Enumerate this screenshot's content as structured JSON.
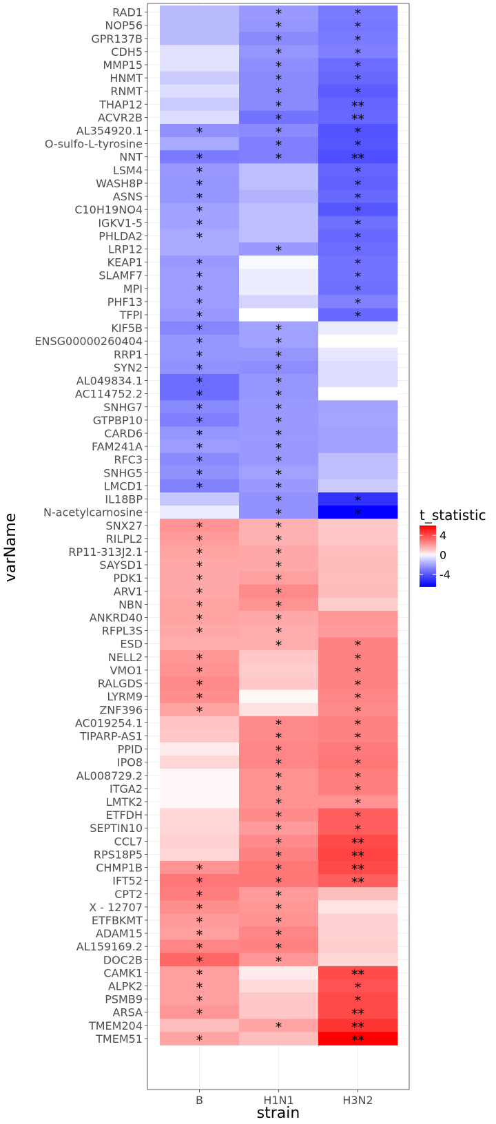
{
  "chart_data": {
    "type": "heatmap",
    "xlabel": "strain",
    "ylabel": "varName",
    "x_categories": [
      "B",
      "H1N1",
      "H3N2"
    ],
    "legend": {
      "title": "t_statistic",
      "ticks": [
        4,
        0,
        -4
      ],
      "range": [
        -6.5,
        6
      ],
      "low_color": "#0000ff",
      "mid_color": "#ffffff",
      "high_color": "#ff0000",
      "placement": "right"
    },
    "rows": [
      {
        "name": "RAD1",
        "values": [
          -1.4,
          -2.2,
          -3.0
        ],
        "sig": [
          "",
          "*",
          "*"
        ]
      },
      {
        "name": "NOP56",
        "values": [
          -1.4,
          -2.3,
          -3.1
        ],
        "sig": [
          "",
          "*",
          "*"
        ]
      },
      {
        "name": "GPR137B",
        "values": [
          -1.4,
          -2.6,
          -3.0
        ],
        "sig": [
          "",
          "*",
          "*"
        ]
      },
      {
        "name": "CDH5",
        "values": [
          -0.5,
          -2.3,
          -2.9
        ],
        "sig": [
          "",
          "*",
          "*"
        ]
      },
      {
        "name": "MMP15",
        "values": [
          -0.5,
          -2.5,
          -3.4
        ],
        "sig": [
          "",
          "*",
          "*"
        ]
      },
      {
        "name": "HNMT",
        "values": [
          -1.0,
          -2.6,
          -3.5
        ],
        "sig": [
          "",
          "*",
          "*"
        ]
      },
      {
        "name": "RNMT",
        "values": [
          -0.6,
          -2.6,
          -3.8
        ],
        "sig": [
          "",
          "*",
          "*"
        ]
      },
      {
        "name": "THAP12",
        "values": [
          -1.0,
          -2.6,
          -3.6
        ],
        "sig": [
          "",
          "*",
          "**"
        ]
      },
      {
        "name": "ACVR2B",
        "values": [
          -0.6,
          -3.2,
          -3.5
        ],
        "sig": [
          "",
          "*",
          "**"
        ]
      },
      {
        "name": "AL354920.1",
        "values": [
          -2.4,
          -2.6,
          -4.1
        ],
        "sig": [
          "*",
          "*",
          "*"
        ]
      },
      {
        "name": "O-sulfo-L-tyrosine",
        "values": [
          -1.8,
          -2.9,
          -4.0
        ],
        "sig": [
          "",
          "*",
          "*"
        ]
      },
      {
        "name": "NNT",
        "values": [
          -3.0,
          -2.9,
          -4.2
        ],
        "sig": [
          "*",
          "*",
          "**"
        ]
      },
      {
        "name": "LSM4",
        "values": [
          -2.2,
          -1.3,
          -3.6
        ],
        "sig": [
          "*",
          "",
          "*"
        ]
      },
      {
        "name": "WASH8P",
        "values": [
          -2.3,
          -1.3,
          -3.7
        ],
        "sig": [
          "*",
          "",
          "*"
        ]
      },
      {
        "name": "ASNS",
        "values": [
          -2.3,
          -1.6,
          -3.5
        ],
        "sig": [
          "*",
          "",
          "*"
        ]
      },
      {
        "name": "C10H19NO4",
        "values": [
          -2.0,
          -1.3,
          -4.0
        ],
        "sig": [
          "*",
          "",
          "*"
        ]
      },
      {
        "name": "IGKV1-5",
        "values": [
          -2.0,
          -1.3,
          -3.3
        ],
        "sig": [
          "*",
          "",
          "*"
        ]
      },
      {
        "name": "PHLDA2",
        "values": [
          -1.8,
          -1.3,
          -3.5
        ],
        "sig": [
          "*",
          "",
          "*"
        ]
      },
      {
        "name": "LRP12",
        "values": [
          -1.8,
          -2.2,
          -3.4
        ],
        "sig": [
          "",
          "*",
          "*"
        ]
      },
      {
        "name": "KEAP1",
        "values": [
          -2.2,
          -0.1,
          -3.2
        ],
        "sig": [
          "*",
          "",
          "*"
        ]
      },
      {
        "name": "SLAMF7",
        "values": [
          -2.1,
          -0.3,
          -3.2
        ],
        "sig": [
          "*",
          "",
          "*"
        ]
      },
      {
        "name": "MPI",
        "values": [
          -2.1,
          -0.3,
          -3.3
        ],
        "sig": [
          "*",
          "",
          "*"
        ]
      },
      {
        "name": "PHF13",
        "values": [
          -2.1,
          -0.8,
          -2.8
        ],
        "sig": [
          "*",
          "",
          "*"
        ]
      },
      {
        "name": "TFPI",
        "values": [
          -2.2,
          0.0,
          -3.5
        ],
        "sig": [
          "*",
          "",
          "*"
        ]
      },
      {
        "name": "KIF5B",
        "values": [
          -2.7,
          -2.0,
          -0.3
        ],
        "sig": [
          "*",
          "*",
          ""
        ]
      },
      {
        "name": "ENSG00000260404",
        "values": [
          -2.3,
          -2.0,
          0.0
        ],
        "sig": [
          "*",
          "*",
          ""
        ]
      },
      {
        "name": "RRP1",
        "values": [
          -2.3,
          -2.3,
          -0.4
        ],
        "sig": [
          "*",
          "*",
          ""
        ]
      },
      {
        "name": "SYN2",
        "values": [
          -2.4,
          -2.5,
          -0.6
        ],
        "sig": [
          "*",
          "*",
          ""
        ]
      },
      {
        "name": "AL049834.1",
        "values": [
          -3.4,
          -2.3,
          -0.6
        ],
        "sig": [
          "*",
          "*",
          ""
        ]
      },
      {
        "name": "AC114752.2",
        "values": [
          -3.4,
          -2.3,
          0.0
        ],
        "sig": [
          "*",
          "*",
          ""
        ]
      },
      {
        "name": "SNHG7",
        "values": [
          -2.6,
          -2.2,
          -2.0
        ],
        "sig": [
          "*",
          "*",
          ""
        ]
      },
      {
        "name": "GTPBP10",
        "values": [
          -2.9,
          -2.2,
          -1.9
        ],
        "sig": [
          "*",
          "*",
          ""
        ]
      },
      {
        "name": "CARD6",
        "values": [
          -2.3,
          -2.2,
          -2.0
        ],
        "sig": [
          "*",
          "*",
          ""
        ]
      },
      {
        "name": "FAM241A",
        "values": [
          -2.1,
          -2.2,
          -2.0
        ],
        "sig": [
          "*",
          "*",
          ""
        ]
      },
      {
        "name": "RFC3",
        "values": [
          -2.6,
          -2.2,
          -1.3
        ],
        "sig": [
          "*",
          "*",
          ""
        ]
      },
      {
        "name": "SNHG5",
        "values": [
          -2.4,
          -2.0,
          -1.3
        ],
        "sig": [
          "*",
          "*",
          ""
        ]
      },
      {
        "name": "LMCD1",
        "values": [
          -2.8,
          -2.2,
          -1.0
        ],
        "sig": [
          "*",
          "*",
          ""
        ]
      },
      {
        "name": "IL18BP",
        "values": [
          -1.1,
          -2.4,
          -5.0
        ],
        "sig": [
          "",
          "*",
          "*"
        ]
      },
      {
        "name": "N-acetylcarnosine",
        "values": [
          -0.3,
          -2.4,
          -6.4
        ],
        "sig": [
          "",
          "*",
          "*"
        ]
      },
      {
        "name": "SNX27",
        "values": [
          2.2,
          1.5,
          1.0
        ],
        "sig": [
          "*",
          "*",
          ""
        ]
      },
      {
        "name": "RILPL2",
        "values": [
          2.0,
          1.5,
          1.0
        ],
        "sig": [
          "*",
          "*",
          ""
        ]
      },
      {
        "name": "RP11-313J2.1",
        "values": [
          1.8,
          1.7,
          1.2
        ],
        "sig": [
          "*",
          "*",
          ""
        ]
      },
      {
        "name": "SAYSD1",
        "values": [
          1.7,
          1.7,
          1.3
        ],
        "sig": [
          "*",
          "*",
          ""
        ]
      },
      {
        "name": "PDK1",
        "values": [
          1.7,
          1.9,
          1.2
        ],
        "sig": [
          "*",
          "*",
          ""
        ]
      },
      {
        "name": "ARV1",
        "values": [
          1.7,
          2.4,
          1.3
        ],
        "sig": [
          "*",
          "*",
          ""
        ]
      },
      {
        "name": "NBN",
        "values": [
          1.8,
          2.2,
          0.9
        ],
        "sig": [
          "*",
          "*",
          ""
        ]
      },
      {
        "name": "ANKRD40",
        "values": [
          1.8,
          1.7,
          2.1
        ],
        "sig": [
          "*",
          "*",
          ""
        ]
      },
      {
        "name": "RFPL3S",
        "values": [
          1.7,
          1.6,
          2.0
        ],
        "sig": [
          "*",
          "*",
          ""
        ]
      },
      {
        "name": "ESD",
        "values": [
          1.6,
          1.6,
          2.6
        ],
        "sig": [
          "",
          "*",
          "*"
        ]
      },
      {
        "name": "NELL2",
        "values": [
          2.1,
          1.0,
          2.6
        ],
        "sig": [
          "*",
          "",
          "*"
        ]
      },
      {
        "name": "VMO1",
        "values": [
          2.2,
          0.9,
          2.6
        ],
        "sig": [
          "*",
          "",
          "*"
        ]
      },
      {
        "name": "RALGDS",
        "values": [
          2.4,
          1.0,
          2.6
        ],
        "sig": [
          "*",
          "",
          "*"
        ]
      },
      {
        "name": "LYRM9",
        "values": [
          2.3,
          0.1,
          2.5
        ],
        "sig": [
          "*",
          "",
          "*"
        ]
      },
      {
        "name": "ZNF396",
        "values": [
          1.8,
          0.5,
          2.4
        ],
        "sig": [
          "*",
          "",
          "*"
        ]
      },
      {
        "name": "AC019254.1",
        "values": [
          1.1,
          2.4,
          2.6
        ],
        "sig": [
          "",
          "*",
          "*"
        ]
      },
      {
        "name": "TIPARP-AS1",
        "values": [
          1.0,
          2.4,
          2.6
        ],
        "sig": [
          "",
          "*",
          "*"
        ]
      },
      {
        "name": "PPID",
        "values": [
          0.3,
          2.5,
          2.8
        ],
        "sig": [
          "",
          "*",
          "*"
        ]
      },
      {
        "name": "IPO8",
        "values": [
          0.7,
          2.5,
          2.9
        ],
        "sig": [
          "",
          "*",
          "*"
        ]
      },
      {
        "name": "AL008729.2",
        "values": [
          0.1,
          2.2,
          2.7
        ],
        "sig": [
          "",
          "*",
          "*"
        ]
      },
      {
        "name": "ITGA2",
        "values": [
          0.1,
          2.2,
          2.7
        ],
        "sig": [
          "",
          "*",
          "*"
        ]
      },
      {
        "name": "LMTK2",
        "values": [
          0.1,
          2.2,
          2.2
        ],
        "sig": [
          "",
          "*",
          "*"
        ]
      },
      {
        "name": "ETFDH",
        "values": [
          0.7,
          2.4,
          3.5
        ],
        "sig": [
          "",
          "*",
          "*"
        ]
      },
      {
        "name": "SEPTIN10",
        "values": [
          0.7,
          2.0,
          3.5
        ],
        "sig": [
          "",
          "*",
          "*"
        ]
      },
      {
        "name": "CCL7",
        "values": [
          0.8,
          2.4,
          4.0
        ],
        "sig": [
          "",
          "*",
          "**"
        ]
      },
      {
        "name": "RPS18P5",
        "values": [
          0.7,
          2.6,
          4.2
        ],
        "sig": [
          "",
          "*",
          "**"
        ]
      },
      {
        "name": "CHMP1B",
        "values": [
          2.2,
          2.9,
          4.0
        ],
        "sig": [
          "*",
          "*",
          "**"
        ]
      },
      {
        "name": "IFT52",
        "values": [
          2.9,
          2.9,
          3.5
        ],
        "sig": [
          "*",
          "*",
          "**"
        ]
      },
      {
        "name": "CPT2",
        "values": [
          2.7,
          2.0,
          1.2
        ],
        "sig": [
          "*",
          "*",
          ""
        ]
      },
      {
        "name": "X - 12707",
        "values": [
          2.3,
          2.1,
          0.4
        ],
        "sig": [
          "*",
          "*",
          ""
        ]
      },
      {
        "name": "ETFBKMT",
        "values": [
          2.0,
          2.2,
          0.8
        ],
        "sig": [
          "*",
          "*",
          ""
        ]
      },
      {
        "name": "ADAM15",
        "values": [
          1.9,
          2.5,
          0.8
        ],
        "sig": [
          "*",
          "*",
          ""
        ]
      },
      {
        "name": "AL159169.2",
        "values": [
          2.5,
          2.6,
          0.9
        ],
        "sig": [
          "*",
          "*",
          ""
        ]
      },
      {
        "name": "DOC2B",
        "values": [
          3.3,
          2.1,
          0.7
        ],
        "sig": [
          "*",
          "*",
          ""
        ]
      },
      {
        "name": "CAMK1",
        "values": [
          1.9,
          0.3,
          4.0
        ],
        "sig": [
          "*",
          "",
          "**"
        ]
      },
      {
        "name": "ALPK2",
        "values": [
          1.9,
          0.6,
          3.8
        ],
        "sig": [
          "*",
          "",
          "*"
        ]
      },
      {
        "name": "PSMB9",
        "values": [
          1.9,
          1.0,
          4.0
        ],
        "sig": [
          "*",
          "",
          "*"
        ]
      },
      {
        "name": "ARSA",
        "values": [
          2.1,
          1.0,
          4.0
        ],
        "sig": [
          "*",
          "",
          "**"
        ]
      },
      {
        "name": "TMEM204",
        "values": [
          1.2,
          1.8,
          4.6
        ],
        "sig": [
          "",
          "*",
          "**"
        ]
      },
      {
        "name": "TMEM51",
        "values": [
          1.8,
          1.2,
          6.0
        ],
        "sig": [
          "*",
          "",
          "**"
        ]
      }
    ]
  }
}
